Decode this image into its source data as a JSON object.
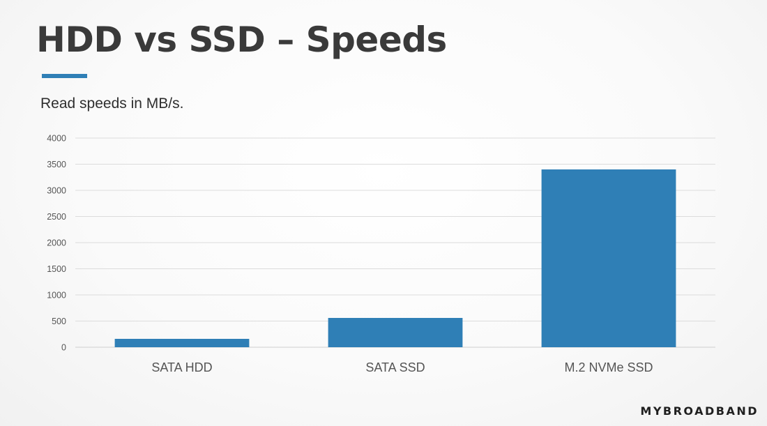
{
  "slide": {
    "title": "HDD vs SSD – Speeds",
    "subtitle": "Read speeds in MB/s.",
    "brand": "MYBROADBAND"
  },
  "colors": {
    "accent": "#2f7fb6",
    "bar": "#2f7fb6",
    "title_text": "#3a3a3a",
    "axis_text": "#555555",
    "gridline": "#dcdcdc"
  },
  "chart_data": {
    "type": "bar",
    "title": "",
    "xlabel": "",
    "ylabel": "",
    "categories": [
      "SATA HDD",
      "SATA SSD",
      "M.2 NVMe SSD"
    ],
    "values": [
      160,
      560,
      3400
    ],
    "ylim": [
      0,
      4000
    ],
    "yticks": [
      0,
      500,
      1000,
      1500,
      2000,
      2500,
      3000,
      3500,
      4000
    ],
    "grid": true,
    "legend": "none"
  }
}
